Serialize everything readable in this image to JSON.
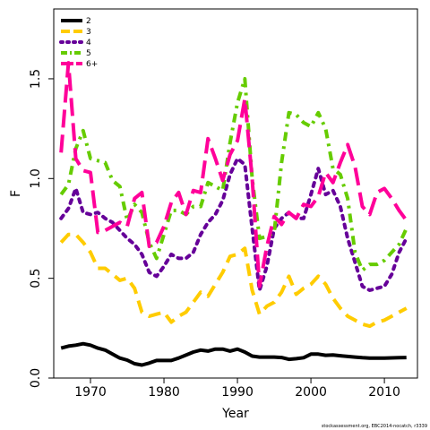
{
  "chart_data": {
    "type": "line",
    "xlabel": "Year",
    "ylabel": "F",
    "xlim": [
      1965,
      2014.5
    ],
    "ylim": [
      0,
      1.85
    ],
    "x_ticks": [
      1970,
      1980,
      1990,
      2000,
      2010
    ],
    "x_tick_labels": [
      "1970",
      "1980",
      "1990",
      "2000",
      "2010"
    ],
    "y_ticks": [
      0,
      0.5,
      1.0,
      1.5
    ],
    "y_tick_labels": [
      "0.0",
      "0.5",
      "1.0",
      "1.5"
    ],
    "grid": false,
    "legend_position": "top-left",
    "footnote": "stockassessment.org, EBC2014-nocatch, r3339",
    "x": [
      1966,
      1967,
      1968,
      1969,
      1970,
      1971,
      1972,
      1973,
      1974,
      1975,
      1976,
      1977,
      1978,
      1979,
      1980,
      1981,
      1982,
      1983,
      1984,
      1985,
      1986,
      1987,
      1988,
      1989,
      1990,
      1991,
      1992,
      1993,
      1994,
      1995,
      1996,
      1997,
      1998,
      1999,
      2000,
      2001,
      2002,
      2003,
      2004,
      2005,
      2006,
      2007,
      2008,
      2009,
      2010,
      2011,
      2012,
      2013
    ],
    "series": [
      {
        "name": "2",
        "color": "#000000",
        "dash": "solid",
        "values": [
          0.15,
          0.16,
          0.165,
          0.172,
          0.165,
          0.15,
          0.14,
          0.12,
          0.1,
          0.09,
          0.072,
          0.065,
          0.075,
          0.088,
          0.088,
          0.088,
          0.1,
          0.115,
          0.13,
          0.14,
          0.135,
          0.145,
          0.145,
          0.135,
          0.145,
          0.13,
          0.11,
          0.105,
          0.105,
          0.105,
          0.103,
          0.094,
          0.097,
          0.102,
          0.12,
          0.12,
          0.114,
          0.116,
          0.112,
          0.108,
          0.105,
          0.102,
          0.1,
          0.1,
          0.1,
          0.101,
          0.102,
          0.103
        ]
      },
      {
        "name": "3",
        "color": "#ffcc00",
        "dash": "longdash",
        "values": [
          0.68,
          0.72,
          0.72,
          0.68,
          0.63,
          0.55,
          0.55,
          0.52,
          0.49,
          0.5,
          0.45,
          0.33,
          0.31,
          0.32,
          0.33,
          0.28,
          0.31,
          0.33,
          0.38,
          0.43,
          0.41,
          0.47,
          0.53,
          0.61,
          0.62,
          0.65,
          0.44,
          0.32,
          0.36,
          0.38,
          0.43,
          0.51,
          0.42,
          0.45,
          0.47,
          0.51,
          0.47,
          0.4,
          0.35,
          0.31,
          0.29,
          0.27,
          0.26,
          0.28,
          0.29,
          0.31,
          0.33,
          0.35
        ]
      },
      {
        "name": "4",
        "color": "#660099",
        "dash": "dotted",
        "values": [
          0.8,
          0.85,
          0.95,
          0.83,
          0.82,
          0.83,
          0.8,
          0.78,
          0.74,
          0.7,
          0.67,
          0.62,
          0.53,
          0.51,
          0.56,
          0.62,
          0.6,
          0.6,
          0.63,
          0.72,
          0.78,
          0.82,
          0.89,
          1.02,
          1.1,
          1.07,
          0.75,
          0.44,
          0.56,
          0.75,
          0.8,
          0.83,
          0.8,
          0.8,
          0.92,
          1.05,
          0.92,
          0.94,
          0.86,
          0.7,
          0.58,
          0.46,
          0.44,
          0.45,
          0.46,
          0.52,
          0.63,
          0.7
        ]
      },
      {
        "name": "5",
        "color": "#66cc00",
        "dash": "dashdot",
        "values": [
          0.92,
          0.97,
          1.15,
          1.24,
          1.1,
          1.09,
          1.08,
          0.99,
          0.96,
          0.79,
          0.87,
          0.83,
          0.68,
          0.6,
          0.72,
          0.84,
          0.84,
          0.82,
          0.86,
          0.86,
          0.98,
          0.96,
          0.94,
          1.18,
          1.38,
          1.5,
          1.0,
          0.7,
          0.71,
          0.73,
          1.08,
          1.33,
          1.32,
          1.28,
          1.26,
          1.33,
          1.25,
          1.05,
          1.02,
          0.9,
          0.63,
          0.54,
          0.57,
          0.57,
          0.59,
          0.63,
          0.67,
          0.75
        ]
      },
      {
        "name": "6+",
        "color": "#ff0099",
        "dash": "longlongdash",
        "values": [
          1.13,
          1.58,
          1.1,
          1.04,
          1.03,
          0.73,
          0.74,
          0.76,
          0.78,
          0.76,
          0.9,
          0.93,
          0.66,
          0.68,
          0.76,
          0.88,
          0.93,
          0.82,
          0.94,
          0.93,
          1.2,
          1.1,
          0.99,
          1.12,
          1.19,
          1.4,
          1.0,
          0.46,
          0.66,
          0.81,
          0.77,
          0.83,
          0.8,
          0.87,
          0.86,
          0.91,
          1.03,
          0.98,
          1.08,
          1.17,
          1.06,
          0.86,
          0.82,
          0.93,
          0.95,
          0.9,
          0.84,
          0.79
        ]
      }
    ]
  }
}
